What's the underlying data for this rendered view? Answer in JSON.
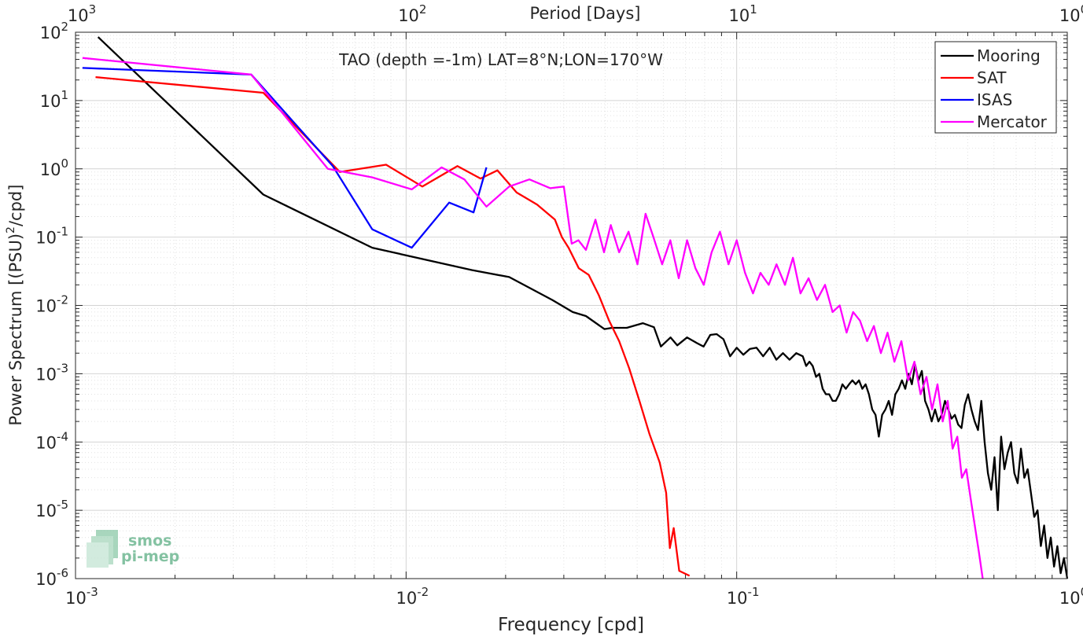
{
  "chart_data": {
    "type": "line",
    "title": "TAO (depth =-1m) LAT=8°N;LON=170°W",
    "xlabel": "Frequency [cpd]",
    "ylabel_main": "Power Spectrum [(PSU)",
    "ylabel_sup": "2",
    "ylabel_tail": "/cpd]",
    "top_axis_label": "Period [Days]",
    "x_scale": "log",
    "y_scale": "log",
    "xlim": [
      0.001,
      1
    ],
    "ylim": [
      1e-06,
      100
    ],
    "grid": true,
    "legend_position": "top-right",
    "x_ticks": [
      {
        "value": 0.001,
        "base": "10",
        "exp": "-3"
      },
      {
        "value": 0.01,
        "base": "10",
        "exp": "-2"
      },
      {
        "value": 0.1,
        "base": "10",
        "exp": "-1"
      },
      {
        "value": 1,
        "base": "10",
        "exp": "0"
      }
    ],
    "top_ticks": [
      {
        "value": 0.001,
        "base": "10",
        "exp": "3"
      },
      {
        "value": 0.01,
        "base": "10",
        "exp": "2"
      },
      {
        "value": 0.1,
        "base": "10",
        "exp": "1"
      },
      {
        "value": 1,
        "base": "10",
        "exp": "0"
      }
    ],
    "y_ticks": [
      {
        "value": 100,
        "base": "10",
        "exp": "2"
      },
      {
        "value": 10,
        "base": "10",
        "exp": "1"
      },
      {
        "value": 1,
        "base": "10",
        "exp": "0"
      },
      {
        "value": 0.1,
        "base": "10",
        "exp": "-1"
      },
      {
        "value": 0.01,
        "base": "10",
        "exp": "-2"
      },
      {
        "value": 0.001,
        "base": "10",
        "exp": "-3"
      },
      {
        "value": 0.0001,
        "base": "10",
        "exp": "-4"
      },
      {
        "value": 1e-05,
        "base": "10",
        "exp": "-5"
      },
      {
        "value": 1e-06,
        "base": "10",
        "exp": "-6"
      }
    ],
    "series": [
      {
        "name": "Mooring",
        "color": "#000000",
        "points": [
          [
            0.00117,
            85
          ],
          [
            0.0037,
            0.42
          ],
          [
            0.0079,
            0.07
          ],
          [
            0.0158,
            0.033
          ],
          [
            0.0205,
            0.026
          ],
          [
            0.0277,
            0.012
          ],
          [
            0.0319,
            0.008
          ],
          [
            0.035,
            0.007
          ],
          [
            0.0398,
            0.0045
          ],
          [
            0.042,
            0.0047
          ],
          [
            0.0465,
            0.0047
          ],
          [
            0.052,
            0.0055
          ],
          [
            0.0562,
            0.0048
          ],
          [
            0.059,
            0.0025
          ],
          [
            0.0631,
            0.0034
          ],
          [
            0.0661,
            0.0026
          ],
          [
            0.0708,
            0.0034
          ],
          [
            0.0759,
            0.0028
          ],
          [
            0.0794,
            0.0025
          ],
          [
            0.0832,
            0.0037
          ],
          [
            0.087,
            0.0038
          ],
          [
            0.0912,
            0.0032
          ],
          [
            0.0955,
            0.0018
          ],
          [
            0.1,
            0.0024
          ],
          [
            0.1047,
            0.0019
          ],
          [
            0.1096,
            0.0023
          ],
          [
            0.1148,
            0.0024
          ],
          [
            0.1202,
            0.0018
          ],
          [
            0.1259,
            0.0024
          ],
          [
            0.1318,
            0.0016
          ],
          [
            0.138,
            0.002
          ],
          [
            0.1445,
            0.0016
          ],
          [
            0.1514,
            0.002
          ],
          [
            0.1585,
            0.0018
          ],
          [
            0.1622,
            0.0013
          ],
          [
            0.166,
            0.0015
          ],
          [
            0.1698,
            0.0013
          ],
          [
            0.1738,
            0.0009
          ],
          [
            0.1778,
            0.001
          ],
          [
            0.182,
            0.0006
          ],
          [
            0.1862,
            0.0005
          ],
          [
            0.1905,
            0.0005
          ],
          [
            0.195,
            0.0004
          ],
          [
            0.1995,
            0.0004
          ],
          [
            0.2042,
            0.0005
          ],
          [
            0.2089,
            0.0007
          ],
          [
            0.2138,
            0.0006
          ],
          [
            0.2188,
            0.0007
          ],
          [
            0.2239,
            0.0008
          ],
          [
            0.2291,
            0.0007
          ],
          [
            0.2344,
            0.0008
          ],
          [
            0.2399,
            0.0006
          ],
          [
            0.2455,
            0.0007
          ],
          [
            0.2512,
            0.0005
          ],
          [
            0.257,
            0.0003
          ],
          [
            0.263,
            0.00025
          ],
          [
            0.2692,
            0.00012
          ],
          [
            0.2754,
            0.00025
          ],
          [
            0.2818,
            0.0003
          ],
          [
            0.2884,
            0.0004
          ],
          [
            0.2951,
            0.00025
          ],
          [
            0.302,
            0.0005
          ],
          [
            0.309,
            0.0006
          ],
          [
            0.3162,
            0.0008
          ],
          [
            0.3236,
            0.0006
          ],
          [
            0.3311,
            0.001
          ],
          [
            0.3388,
            0.0007
          ],
          [
            0.3467,
            0.00135
          ],
          [
            0.3548,
            0.0008
          ],
          [
            0.3631,
            0.0011
          ],
          [
            0.3715,
            0.0004
          ],
          [
            0.3802,
            0.0003
          ],
          [
            0.389,
            0.0002
          ],
          [
            0.3981,
            0.0003
          ],
          [
            0.4074,
            0.0002
          ],
          [
            0.4169,
            0.00025
          ],
          [
            0.4266,
            0.0004
          ],
          [
            0.4365,
            0.0003
          ],
          [
            0.4467,
            0.00022
          ],
          [
            0.4571,
            0.00025
          ],
          [
            0.4677,
            0.00018
          ],
          [
            0.4786,
            0.00016
          ],
          [
            0.4898,
            0.00035
          ],
          [
            0.5012,
            0.0005
          ],
          [
            0.5129,
            0.0003
          ],
          [
            0.5248,
            0.0002
          ],
          [
            0.537,
            0.00015
          ],
          [
            0.5495,
            0.0004
          ],
          [
            0.5623,
            0.0001
          ],
          [
            0.5754,
            3.5e-05
          ],
          [
            0.5888,
            2e-05
          ],
          [
            0.6026,
            6e-05
          ],
          [
            0.6166,
            1e-05
          ],
          [
            0.631,
            0.00012
          ],
          [
            0.6457,
            4e-05
          ],
          [
            0.6607,
            7e-05
          ],
          [
            0.6761,
            0.0001
          ],
          [
            0.6918,
            3.5e-05
          ],
          [
            0.7079,
            2.5e-05
          ],
          [
            0.7244,
            8e-05
          ],
          [
            0.7413,
            3e-05
          ],
          [
            0.7586,
            4e-05
          ],
          [
            0.7762,
            1.8e-05
          ],
          [
            0.7943,
            8e-06
          ],
          [
            0.8128,
            1e-05
          ],
          [
            0.8318,
            3e-06
          ],
          [
            0.8511,
            6e-06
          ],
          [
            0.871,
            2e-06
          ],
          [
            0.8913,
            4e-06
          ],
          [
            0.912,
            1.5e-06
          ],
          [
            0.9333,
            3e-06
          ],
          [
            0.955,
            1.2e-06
          ],
          [
            0.9772,
            2e-06
          ],
          [
            1.0,
            1e-06
          ]
        ]
      },
      {
        "name": "SAT",
        "color": "#ff0000",
        "points": [
          [
            0.00115,
            22
          ],
          [
            0.0037,
            13
          ],
          [
            0.0063,
            0.9
          ],
          [
            0.0087,
            1.15
          ],
          [
            0.0112,
            0.55
          ],
          [
            0.0143,
            1.1
          ],
          [
            0.0168,
            0.72
          ],
          [
            0.0189,
            0.95
          ],
          [
            0.0216,
            0.45
          ],
          [
            0.0249,
            0.3
          ],
          [
            0.0282,
            0.18
          ],
          [
            0.0296,
            0.1
          ],
          [
            0.031,
            0.07
          ],
          [
            0.0333,
            0.035
          ],
          [
            0.0357,
            0.028
          ],
          [
            0.0383,
            0.014
          ],
          [
            0.0411,
            0.006
          ],
          [
            0.0441,
            0.003
          ],
          [
            0.0473,
            0.0012
          ],
          [
            0.0508,
            0.0004
          ],
          [
            0.0545,
            0.00013
          ],
          [
            0.0585,
            5e-05
          ],
          [
            0.0612,
            1.8e-05
          ],
          [
            0.0628,
            2.8e-06
          ],
          [
            0.0645,
            5.5e-06
          ],
          [
            0.067,
            1.3e-06
          ],
          [
            0.07,
            9e-07
          ],
          [
            0.072,
            1.1e-06
          ]
        ]
      },
      {
        "name": "ISAS",
        "color": "#0000ff",
        "points": [
          [
            0.00105,
            30
          ],
          [
            0.0034,
            24
          ],
          [
            0.006,
            1.1
          ],
          [
            0.0079,
            0.13
          ],
          [
            0.0104,
            0.07
          ],
          [
            0.0135,
            0.32
          ],
          [
            0.016,
            0.23
          ],
          [
            0.0175,
            1.05
          ]
        ]
      },
      {
        "name": "Mercator",
        "color": "#ff00ff",
        "points": [
          [
            0.00105,
            42
          ],
          [
            0.0034,
            24
          ],
          [
            0.0058,
            1.0
          ],
          [
            0.0079,
            0.75
          ],
          [
            0.0104,
            0.5
          ],
          [
            0.0128,
            1.05
          ],
          [
            0.015,
            0.7
          ],
          [
            0.0175,
            0.28
          ],
          [
            0.0205,
            0.55
          ],
          [
            0.0236,
            0.7
          ],
          [
            0.0273,
            0.52
          ],
          [
            0.03,
            0.55
          ],
          [
            0.0317,
            0.08
          ],
          [
            0.0332,
            0.09
          ],
          [
            0.035,
            0.065
          ],
          [
            0.0374,
            0.18
          ],
          [
            0.0397,
            0.06
          ],
          [
            0.0416,
            0.15
          ],
          [
            0.0441,
            0.06
          ],
          [
            0.0471,
            0.12
          ],
          [
            0.0501,
            0.04
          ],
          [
            0.053,
            0.22
          ],
          [
            0.056,
            0.1
          ],
          [
            0.0595,
            0.04
          ],
          [
            0.063,
            0.09
          ],
          [
            0.0668,
            0.025
          ],
          [
            0.0708,
            0.09
          ],
          [
            0.075,
            0.035
          ],
          [
            0.0795,
            0.02
          ],
          [
            0.084,
            0.06
          ],
          [
            0.089,
            0.12
          ],
          [
            0.0945,
            0.04
          ],
          [
            0.1,
            0.09
          ],
          [
            0.106,
            0.03
          ],
          [
            0.112,
            0.015
          ],
          [
            0.118,
            0.03
          ],
          [
            0.125,
            0.02
          ],
          [
            0.132,
            0.04
          ],
          [
            0.14,
            0.02
          ],
          [
            0.148,
            0.05
          ],
          [
            0.156,
            0.015
          ],
          [
            0.165,
            0.025
          ],
          [
            0.175,
            0.012
          ],
          [
            0.185,
            0.02
          ],
          [
            0.195,
            0.008
          ],
          [
            0.205,
            0.01
          ],
          [
            0.215,
            0.004
          ],
          [
            0.225,
            0.008
          ],
          [
            0.236,
            0.006
          ],
          [
            0.248,
            0.003
          ],
          [
            0.26,
            0.005
          ],
          [
            0.273,
            0.002
          ],
          [
            0.286,
            0.004
          ],
          [
            0.3,
            0.0015
          ],
          [
            0.315,
            0.003
          ],
          [
            0.33,
            0.0008
          ],
          [
            0.345,
            0.0015
          ],
          [
            0.36,
            0.0005
          ],
          [
            0.375,
            0.0009
          ],
          [
            0.39,
            0.0003
          ],
          [
            0.405,
            0.0007
          ],
          [
            0.42,
            0.0002
          ],
          [
            0.435,
            0.0004
          ],
          [
            0.45,
            8e-05
          ],
          [
            0.465,
            0.00012
          ],
          [
            0.48,
            3e-05
          ],
          [
            0.495,
            4e-05
          ],
          [
            0.51,
            1.5e-05
          ],
          [
            0.525,
            6e-06
          ],
          [
            0.54,
            2.5e-06
          ],
          [
            0.555,
            1e-06
          ]
        ]
      }
    ]
  },
  "watermark": {
    "line1": "smos",
    "line2": "pi-mep",
    "color": "#5cae84"
  }
}
